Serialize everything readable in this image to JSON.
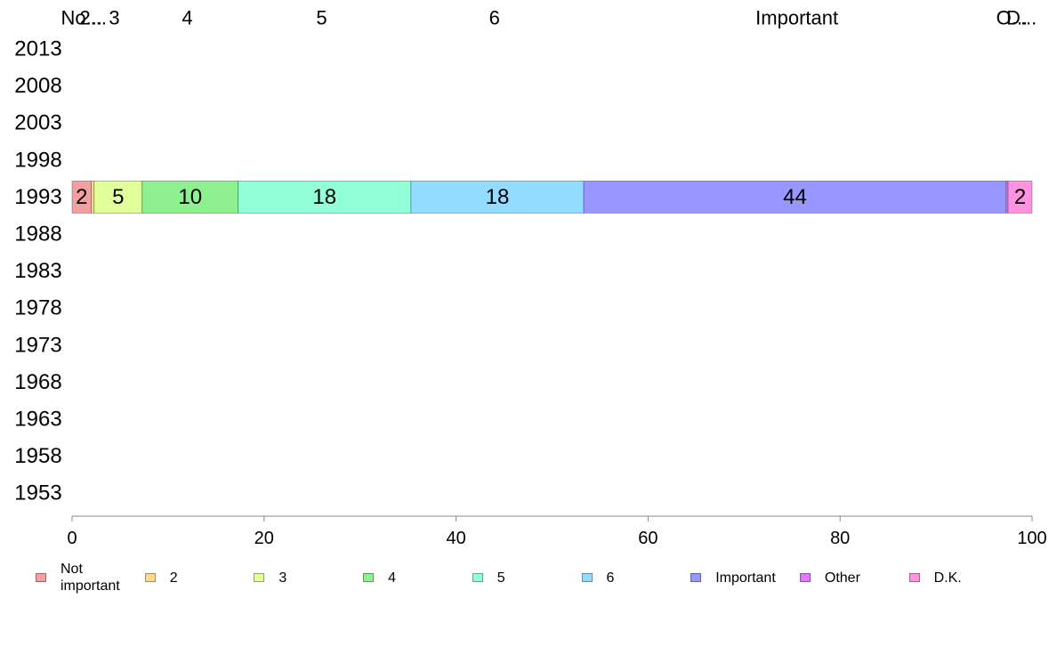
{
  "chart_data": {
    "type": "bar",
    "orientation": "horizontal",
    "stacked": true,
    "percent": true,
    "categories": [
      "2013",
      "2008",
      "2003",
      "1998",
      "1993",
      "1988",
      "1983",
      "1978",
      "1973",
      "1968",
      "1963",
      "1958",
      "1953"
    ],
    "series": [
      {
        "name": "Not important",
        "color": "#f4a0a0",
        "values": [
          null,
          null,
          null,
          null,
          2,
          null,
          null,
          null,
          null,
          null,
          null,
          null,
          null
        ],
        "value_labels": [
          "",
          "",
          "",
          "",
          "2",
          "",
          "",
          "",
          "",
          "",
          "",
          "",
          ""
        ]
      },
      {
        "name": "2",
        "color": "#ffd98f",
        "values": [
          null,
          null,
          null,
          null,
          0.3,
          null,
          null,
          null,
          null,
          null,
          null,
          null,
          null
        ],
        "value_labels": [
          "",
          "",
          "",
          "",
          "",
          "",
          "",
          "",
          "",
          "",
          "",
          "",
          ""
        ]
      },
      {
        "name": "3",
        "color": "#e1ff9a",
        "values": [
          null,
          null,
          null,
          null,
          5,
          null,
          null,
          null,
          null,
          null,
          null,
          null,
          null
        ],
        "value_labels": [
          "",
          "",
          "",
          "",
          "5",
          "",
          "",
          "",
          "",
          "",
          "",
          "",
          ""
        ]
      },
      {
        "name": "4",
        "color": "#8ef08e",
        "values": [
          null,
          null,
          null,
          null,
          10,
          null,
          null,
          null,
          null,
          null,
          null,
          null,
          null
        ],
        "value_labels": [
          "",
          "",
          "",
          "",
          "10",
          "",
          "",
          "",
          "",
          "",
          "",
          "",
          ""
        ]
      },
      {
        "name": "5",
        "color": "#93ffd9",
        "values": [
          null,
          null,
          null,
          null,
          18,
          null,
          null,
          null,
          null,
          null,
          null,
          null,
          null
        ],
        "value_labels": [
          "",
          "",
          "",
          "",
          "18",
          "",
          "",
          "",
          "",
          "",
          "",
          "",
          ""
        ]
      },
      {
        "name": "6",
        "color": "#93dbff",
        "values": [
          null,
          null,
          null,
          null,
          18,
          null,
          null,
          null,
          null,
          null,
          null,
          null,
          null
        ],
        "value_labels": [
          "",
          "",
          "",
          "",
          "18",
          "",
          "",
          "",
          "",
          "",
          "",
          "",
          ""
        ]
      },
      {
        "name": "Important",
        "color": "#9797ff",
        "values": [
          null,
          null,
          null,
          null,
          44,
          null,
          null,
          null,
          null,
          null,
          null,
          null,
          null
        ],
        "value_labels": [
          "",
          "",
          "",
          "",
          "44",
          "",
          "",
          "",
          "",
          "",
          "",
          "",
          ""
        ]
      },
      {
        "name": "Other",
        "color": "#df79ff",
        "values": [
          null,
          null,
          null,
          null,
          0.2,
          null,
          null,
          null,
          null,
          null,
          null,
          null,
          null
        ],
        "value_labels": [
          "",
          "",
          "",
          "",
          "",
          "",
          "",
          "",
          "",
          "",
          "",
          "",
          ""
        ]
      },
      {
        "name": "D.K.",
        "color": "#ff93df",
        "values": [
          null,
          null,
          null,
          null,
          2.5,
          null,
          null,
          null,
          null,
          null,
          null,
          null,
          null
        ],
        "value_labels": [
          "",
          "",
          "",
          "",
          "2",
          "",
          "",
          "",
          "",
          "",
          "",
          "",
          ""
        ]
      }
    ],
    "top_labels": [
      {
        "text": "No...",
        "at": 1.0
      },
      {
        "text": "2...",
        "at": 2.2
      },
      {
        "text": "3",
        "at": 4.4
      },
      {
        "text": "4",
        "at": 12.0
      },
      {
        "text": "5",
        "at": 26.0
      },
      {
        "text": "6",
        "at": 44.0
      },
      {
        "text": "Important",
        "at": 75.5
      },
      {
        "text": "O...",
        "at": 97.9
      },
      {
        "text": "D...",
        "at": 98.9
      }
    ],
    "xlim": [
      0,
      100
    ],
    "xticks": [
      0,
      20,
      40,
      60,
      80,
      100
    ],
    "xlabel": "",
    "ylabel": "",
    "title": "",
    "grid": false,
    "legend_position": "bottom"
  }
}
